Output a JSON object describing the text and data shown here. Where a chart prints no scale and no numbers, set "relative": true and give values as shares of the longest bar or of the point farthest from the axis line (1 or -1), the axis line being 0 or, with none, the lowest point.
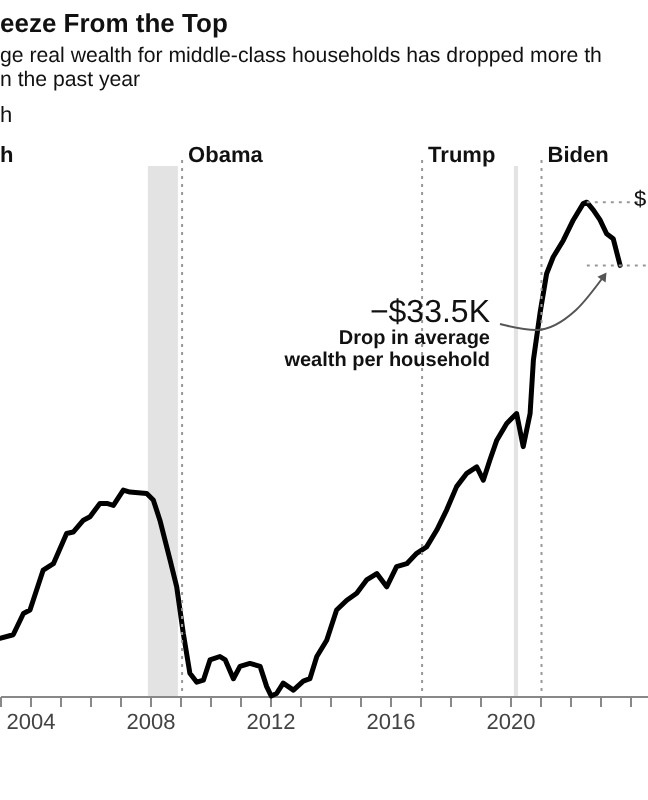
{
  "chart_data": {
    "type": "line",
    "title": "eeze From the Top",
    "subtitle": "ge real wealth for middle-class households has dropped more th\nn the past year",
    "ylabel": "h",
    "relative": true,
    "x": [
      2003.0,
      2003.44,
      2003.78,
      2004.0,
      2004.44,
      2004.78,
      2005.22,
      2005.44,
      2005.78,
      2006.0,
      2006.33,
      2006.56,
      2006.78,
      2007.11,
      2007.33,
      2007.89,
      2008.11,
      2008.33,
      2008.67,
      2008.89,
      2009.11,
      2009.33,
      2009.56,
      2009.78,
      2010.0,
      2010.33,
      2010.51,
      2010.78,
      2011.0,
      2011.33,
      2011.67,
      2011.89,
      2012.04,
      2012.22,
      2012.44,
      2012.78,
      2013.11,
      2013.33,
      2013.56,
      2013.89,
      2014.22,
      2014.56,
      2014.89,
      2015.22,
      2015.56,
      2015.89,
      2016.22,
      2016.56,
      2016.89,
      2017.22,
      2017.56,
      2017.89,
      2018.22,
      2018.56,
      2018.89,
      2019.11,
      2019.33,
      2019.56,
      2019.89,
      2020.22,
      2020.44,
      2020.67,
      2020.78,
      2021.0,
      2021.22,
      2021.44,
      2021.78,
      2022.11,
      2022.44,
      2022.56,
      2022.78,
      2023.0,
      2023.22,
      2023.44,
      2023.67
    ],
    "series": [
      {
        "color": "#000000",
        "values": [
          0.117,
          0.124,
          0.167,
          0.174,
          0.255,
          0.268,
          0.329,
          0.332,
          0.356,
          0.363,
          0.39,
          0.39,
          0.386,
          0.417,
          0.413,
          0.41,
          0.397,
          0.356,
          0.275,
          0.221,
          0.127,
          0.046,
          0.028,
          0.032,
          0.073,
          0.08,
          0.073,
          0.035,
          0.06,
          0.066,
          0.06,
          0.019,
          0.0,
          0.005,
          0.026,
          0.012,
          0.03,
          0.035,
          0.08,
          0.113,
          0.174,
          0.194,
          0.208,
          0.235,
          0.248,
          0.221,
          0.262,
          0.268,
          0.289,
          0.302,
          0.336,
          0.377,
          0.424,
          0.451,
          0.464,
          0.437,
          0.478,
          0.518,
          0.552,
          0.572,
          0.505,
          0.572,
          0.68,
          0.775,
          0.855,
          0.889,
          0.923,
          0.964,
          0.997,
          1.0,
          0.984,
          0.964,
          0.936,
          0.926,
          0.872
        ]
      }
    ],
    "xlim": [
      2003,
      2024.6
    ],
    "xticks": [
      {
        "value": 2003,
        "label": null
      },
      2004,
      {
        "value": 2005,
        "label": null
      },
      {
        "value": 2006,
        "label": null
      },
      {
        "value": 2007,
        "label": null
      },
      2008,
      {
        "value": 2009,
        "label": null
      },
      {
        "value": 2010,
        "label": null
      },
      {
        "value": 2011,
        "label": null
      },
      2012,
      {
        "value": 2013,
        "label": null
      },
      {
        "value": 2014,
        "label": null
      },
      {
        "value": 2015,
        "label": null
      },
      2016,
      {
        "value": 2017,
        "label": null
      },
      {
        "value": 2018,
        "label": null
      },
      {
        "value": 2019,
        "label": null
      },
      2020,
      {
        "value": 2021,
        "label": null
      },
      {
        "value": 2022,
        "label": null
      },
      {
        "value": 2023,
        "label": null
      },
      {
        "value": 2024,
        "label": null
      }
    ],
    "bands": [
      {
        "axis": "x",
        "from": 2007.93,
        "to": 2008.93,
        "color": "#e3e3e3"
      },
      {
        "axis": "x",
        "from": 2020.13,
        "to": 2020.27,
        "color": "#e3e3e3"
      }
    ],
    "ref_lines": [
      {
        "axis": "x",
        "value": 2009.07,
        "label": "Obama",
        "color": "#999999",
        "line_style": "dotted"
      },
      {
        "axis": "x",
        "value": 2017.07,
        "label": "Trump",
        "color": "#999999",
        "line_style": "dotted"
      },
      {
        "axis": "x",
        "value": 2021.05,
        "label": "Biden",
        "color": "#999999",
        "line_style": "dotted"
      },
      {
        "axis": "y",
        "value": 1.0,
        "color": "#999999",
        "line_style": "dotted"
      },
      {
        "axis": "y",
        "value": 0.872,
        "color": "#999999",
        "line_style": "dotted"
      }
    ],
    "annotations": [
      "h",
      "$",
      "−$33.5K",
      "Drop in average",
      "wealth per household"
    ],
    "grid": false,
    "marker": "none",
    "line_style": "solid"
  }
}
